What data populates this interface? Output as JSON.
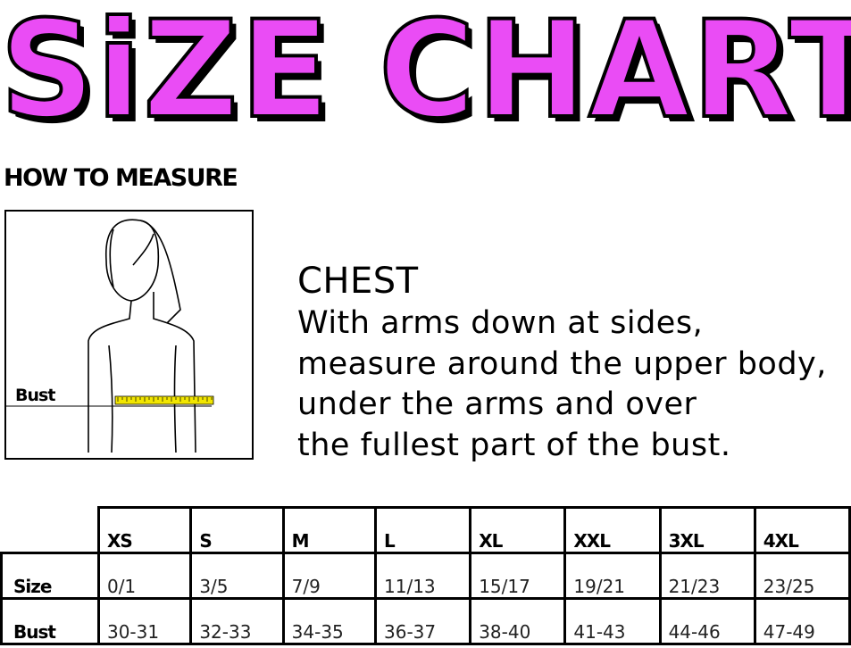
{
  "title": "SiZE CHART",
  "title_color": "#ea4cf5",
  "how_to_measure": "HOW TO MEASURE",
  "figure": {
    "label": "Bust",
    "tape_color": "#f2e600"
  },
  "chest": {
    "heading": "CHEST",
    "lines": [
      "With arms down at sides,",
      "measure around the upper body,",
      "under the arms and over",
      "the fullest part of the bust."
    ]
  },
  "table": {
    "columns": [
      "XS",
      "S",
      "M",
      "L",
      "XL",
      "XXL",
      "3XL",
      "4XL"
    ],
    "rows": [
      {
        "label": "Size",
        "values": [
          "0/1",
          "3/5",
          "7/9",
          "11/13",
          "15/17",
          "19/21",
          "21/23",
          "23/25"
        ]
      },
      {
        "label": "Bust",
        "values": [
          "30-31",
          "32-33",
          "34-35",
          "36-37",
          "38-40",
          "41-43",
          "44-46",
          "47-49"
        ]
      }
    ]
  }
}
